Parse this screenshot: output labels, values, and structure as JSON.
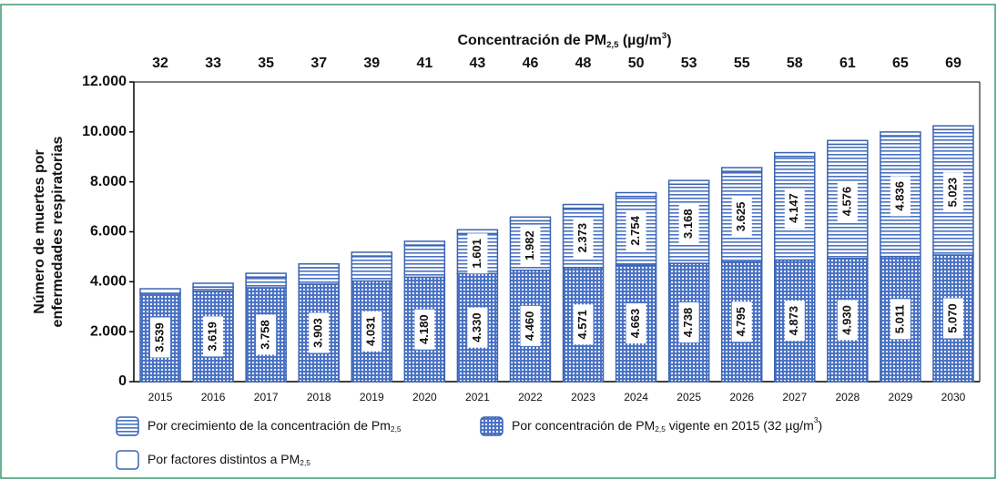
{
  "chart_data": {
    "type": "stacked_bar",
    "title": "Concentración de PM2,5 (µg/m3)",
    "top_labels": [
      32,
      33,
      35,
      37,
      39,
      41,
      43,
      46,
      48,
      50,
      53,
      55,
      58,
      61,
      65,
      69
    ],
    "ylabel": [
      "Número de muertes por",
      "enfermedades respiratorias"
    ],
    "categories": [
      "2015",
      "2016",
      "2017",
      "2018",
      "2019",
      "2020",
      "2021",
      "2022",
      "2023",
      "2024",
      "2025",
      "2026",
      "2027",
      "2028",
      "2029",
      "2030"
    ],
    "series": [
      {
        "name": "Por concentración de PM2,5 vigente en 2015 (32 µg/m3)",
        "pattern": "dots",
        "color": "#4a72c4",
        "values": [
          3539,
          3619,
          3758,
          3903,
          4031,
          4180,
          4330,
          4460,
          4571,
          4663,
          4738,
          4795,
          4873,
          4930,
          5011,
          5070
        ],
        "value_labels": [
          "3.539",
          "3.619",
          "3.758",
          "3.903",
          "4.031",
          "4.180",
          "4.330",
          "4.460",
          "4.571",
          "4.663",
          "4.738",
          "4.795",
          "4.873",
          "4.930",
          "5.011",
          "5.070"
        ]
      },
      {
        "name": "Por crecimiento de la concentración de Pm2,5",
        "pattern": "lines",
        "color": "#4a72c4",
        "values": [
          0,
          170,
          430,
          660,
          1000,
          1290,
          1601,
          1982,
          2373,
          2754,
          3168,
          3625,
          4147,
          4576,
          4836,
          5023
        ],
        "value_labels": [
          null,
          null,
          null,
          null,
          null,
          null,
          "1.601",
          "1.982",
          "2.373",
          "2.754",
          "3.168",
          "3.625",
          "4.147",
          "4.576",
          "4.836",
          "5.023"
        ]
      },
      {
        "name": "Por factores distintos a PM2,5",
        "pattern": "none",
        "color": "#4a72c4",
        "values": [
          180,
          150,
          150,
          150,
          150,
          150,
          150,
          150,
          150,
          150,
          150,
          150,
          150,
          150,
          150,
          150
        ]
      }
    ],
    "ylim": [
      0,
      12000
    ],
    "yticks": [
      {
        "value": 0,
        "label": "0"
      },
      {
        "value": 2000,
        "label": "2.000"
      },
      {
        "value": 4000,
        "label": "4.000"
      },
      {
        "value": 6000,
        "label": "6.000"
      },
      {
        "value": 8000,
        "label": "8.000"
      },
      {
        "value": 10000,
        "label": "10.000"
      },
      {
        "value": 12000,
        "label": "12.000"
      }
    ]
  }
}
